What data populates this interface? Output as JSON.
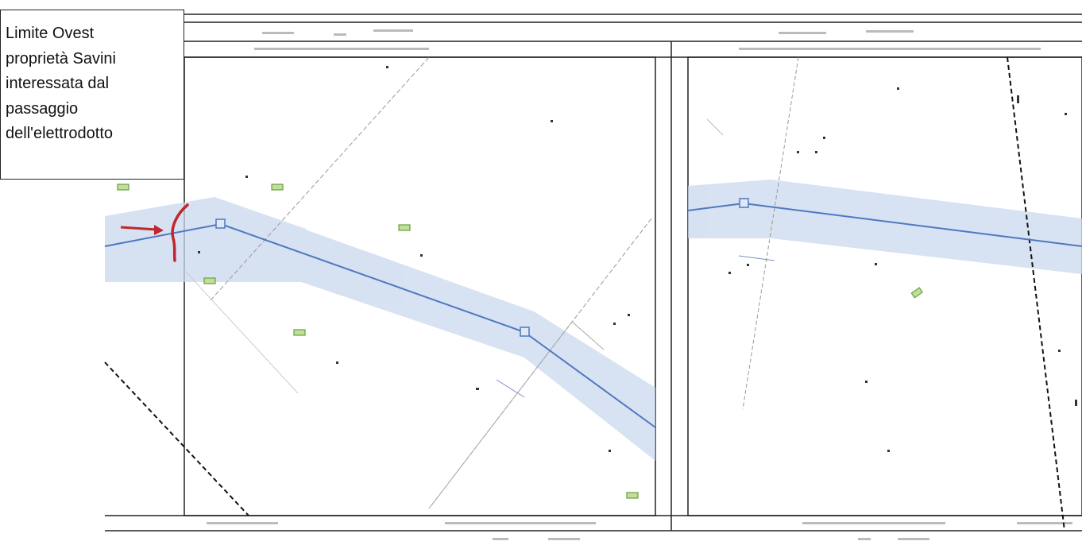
{
  "callout": {
    "lines": [
      "Limite Ovest",
      "proprietà Savini",
      "interessata dal",
      "passaggio",
      "dell'elettrodotto"
    ]
  },
  "colors": {
    "corridor_fill": "#c9d8ee",
    "power_line": "#4f78c0",
    "pylon": "#4f78c0",
    "property_limit": "#c0262c",
    "arrow": "#c0262c",
    "marker": "#7fb546",
    "frame": "#222222",
    "boundary": "#111111"
  },
  "map": {
    "panels": [
      "left-sheet",
      "right-sheet"
    ],
    "legend_icons": [
      "pylon-icon",
      "green-marker-icon",
      "red-arrow-icon"
    ]
  }
}
